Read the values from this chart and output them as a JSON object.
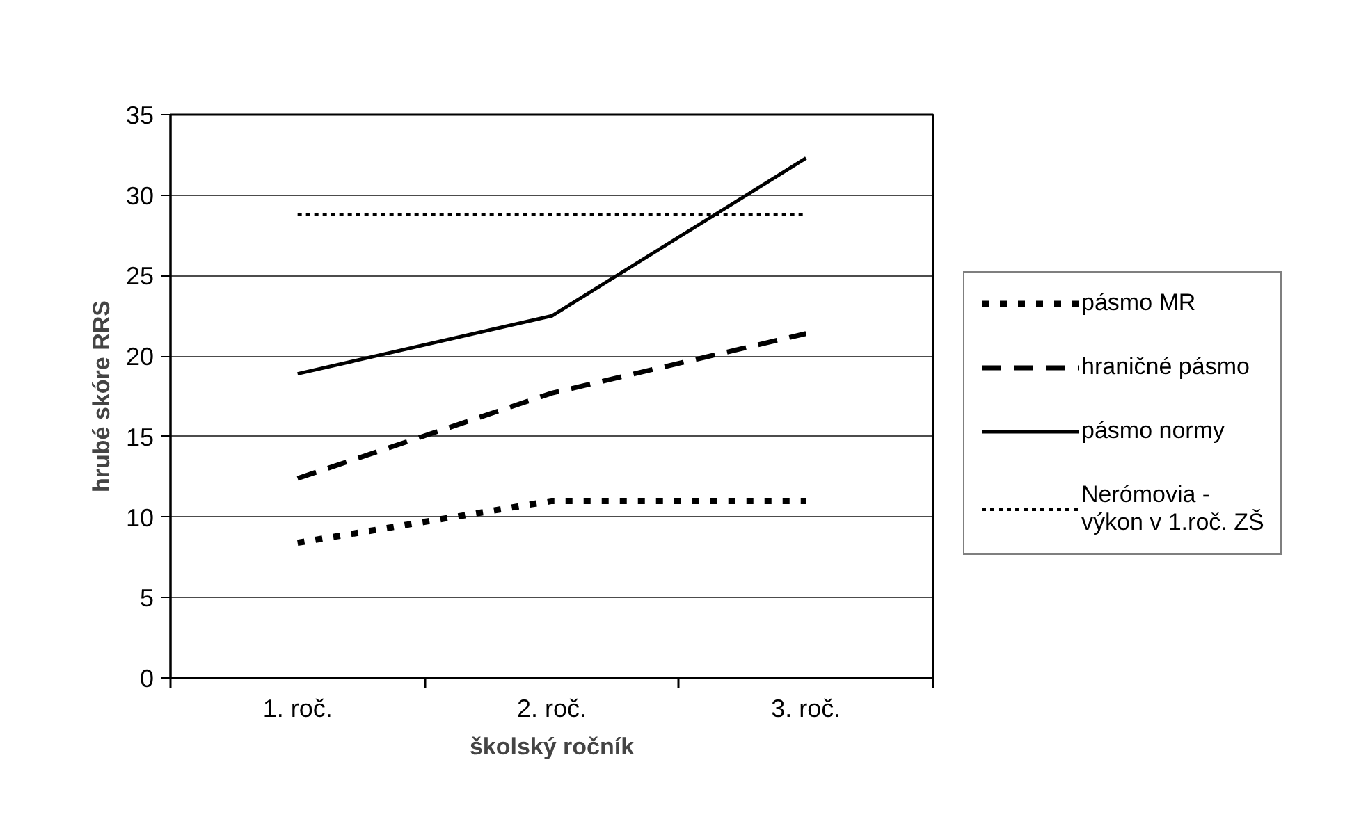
{
  "chart_data": {
    "type": "line",
    "xlabel": "školský ročník",
    "ylabel": "hrubé skóre RRS",
    "categories": [
      "1. roč.",
      "2. roč.",
      "3. roč."
    ],
    "series": [
      {
        "name": "pásmo MR",
        "color": "#000000",
        "line_style": "dotted",
        "values": [
          8.4,
          11.0,
          11.0
        ]
      },
      {
        "name": "hraničné pásmo",
        "color": "#000000",
        "line_style": "dashed",
        "values": [
          12.4,
          17.7,
          21.4
        ]
      },
      {
        "name": "pásmo normy",
        "color": "#000000",
        "line_style": "solid",
        "values": [
          18.9,
          22.5,
          32.3
        ]
      },
      {
        "name": "Nerómovia - výkon v 1.roč. ZŠ",
        "color": "#000000",
        "line_style": "dotted",
        "values": [
          28.8,
          28.8,
          28.8
        ]
      }
    ],
    "ylim": [
      0,
      35
    ],
    "yticks": [
      0,
      5,
      10,
      15,
      20,
      25,
      30,
      35
    ],
    "grid": "y",
    "legend": "right",
    "marker": "none"
  }
}
